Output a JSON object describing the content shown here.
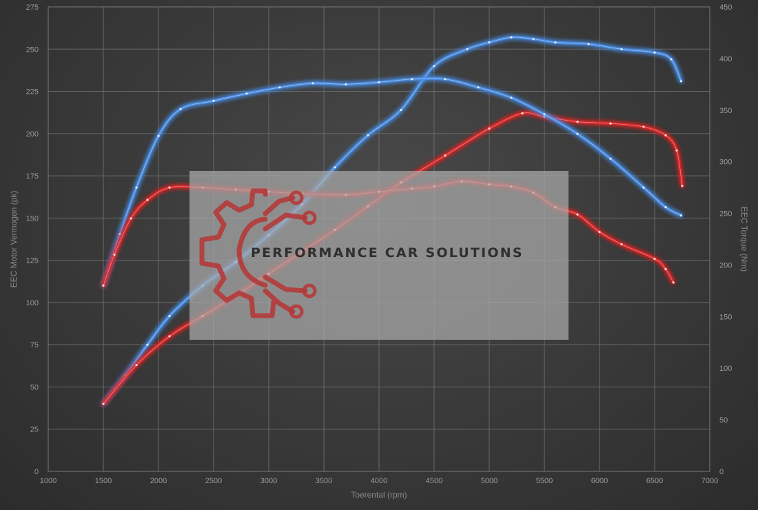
{
  "watermark": {
    "text": "PERFORMANCE CAR SOLUTIONS",
    "logo": "gear-circuit-logo"
  },
  "chart_data": {
    "type": "line",
    "xlabel": "Toerental (rpm)",
    "ylabel_left": "EEC Motor Vermogen (pk)",
    "ylabel_right": "EEC Torque (Nm)",
    "xlim": [
      1000,
      7000
    ],
    "ylim_left": [
      0,
      275
    ],
    "ylim_right": [
      0,
      450
    ],
    "x_ticks": [
      1000,
      1500,
      2000,
      2500,
      3000,
      3500,
      4000,
      4500,
      5000,
      5500,
      6000,
      6500,
      7000
    ],
    "y_ticks_left": [
      0,
      25,
      50,
      75,
      100,
      125,
      150,
      175,
      200,
      225,
      250,
      275
    ],
    "y_ticks_right": [
      0,
      50,
      100,
      150,
      200,
      250,
      300,
      350,
      400,
      450
    ],
    "grid": true,
    "colors": {
      "tuned": "#4a8fe8",
      "stock": "#e02828"
    },
    "series": [
      {
        "axis": "left",
        "color": "#4a8fe8",
        "points": [
          [
            1500,
            40
          ],
          [
            1700,
            57
          ],
          [
            1900,
            75
          ],
          [
            2100,
            92
          ],
          [
            2400,
            110
          ],
          [
            2700,
            124
          ],
          [
            3000,
            140
          ],
          [
            3300,
            158
          ],
          [
            3600,
            180
          ],
          [
            3900,
            199
          ],
          [
            4200,
            214
          ],
          [
            4500,
            240
          ],
          [
            4800,
            250
          ],
          [
            5000,
            254
          ],
          [
            5200,
            257
          ],
          [
            5400,
            256
          ],
          [
            5600,
            254
          ],
          [
            5900,
            253
          ],
          [
            6200,
            250
          ],
          [
            6500,
            248
          ],
          [
            6650,
            244
          ],
          [
            6740,
            231
          ]
        ]
      },
      {
        "axis": "left",
        "color": "#e02828",
        "points": [
          [
            1500,
            40
          ],
          [
            1800,
            63
          ],
          [
            2100,
            80
          ],
          [
            2400,
            92
          ],
          [
            2700,
            104
          ],
          [
            3000,
            117
          ],
          [
            3300,
            130
          ],
          [
            3600,
            143
          ],
          [
            3900,
            157
          ],
          [
            4200,
            171
          ],
          [
            4600,
            187
          ],
          [
            5000,
            203
          ],
          [
            5300,
            212
          ],
          [
            5500,
            210
          ],
          [
            5800,
            207
          ],
          [
            6100,
            206
          ],
          [
            6400,
            204
          ],
          [
            6600,
            199
          ],
          [
            6700,
            190
          ],
          [
            6750,
            169
          ]
        ]
      },
      {
        "axis": "right",
        "color": "#4a8fe8",
        "points": [
          [
            1500,
            180
          ],
          [
            1650,
            230
          ],
          [
            1800,
            275
          ],
          [
            2000,
            325
          ],
          [
            2200,
            351
          ],
          [
            2500,
            359
          ],
          [
            2800,
            366
          ],
          [
            3100,
            372
          ],
          [
            3400,
            376
          ],
          [
            3700,
            375
          ],
          [
            4000,
            377
          ],
          [
            4300,
            380
          ],
          [
            4600,
            380
          ],
          [
            4900,
            372
          ],
          [
            5200,
            362
          ],
          [
            5500,
            346
          ],
          [
            5800,
            327
          ],
          [
            6100,
            303
          ],
          [
            6400,
            275
          ],
          [
            6600,
            256
          ],
          [
            6740,
            248
          ]
        ]
      },
      {
        "axis": "right",
        "color": "#e02828",
        "points": [
          [
            1500,
            180
          ],
          [
            1600,
            210
          ],
          [
            1750,
            245
          ],
          [
            1900,
            263
          ],
          [
            2100,
            275
          ],
          [
            2400,
            275
          ],
          [
            2700,
            273
          ],
          [
            3000,
            271
          ],
          [
            3300,
            269
          ],
          [
            3700,
            268
          ],
          [
            4000,
            271
          ],
          [
            4300,
            274
          ],
          [
            4500,
            276
          ],
          [
            4750,
            281
          ],
          [
            5000,
            278
          ],
          [
            5200,
            276
          ],
          [
            5400,
            270
          ],
          [
            5600,
            256
          ],
          [
            5800,
            249
          ],
          [
            6000,
            232
          ],
          [
            6200,
            220
          ],
          [
            6500,
            206
          ],
          [
            6600,
            196
          ],
          [
            6670,
            183
          ]
        ]
      }
    ]
  }
}
